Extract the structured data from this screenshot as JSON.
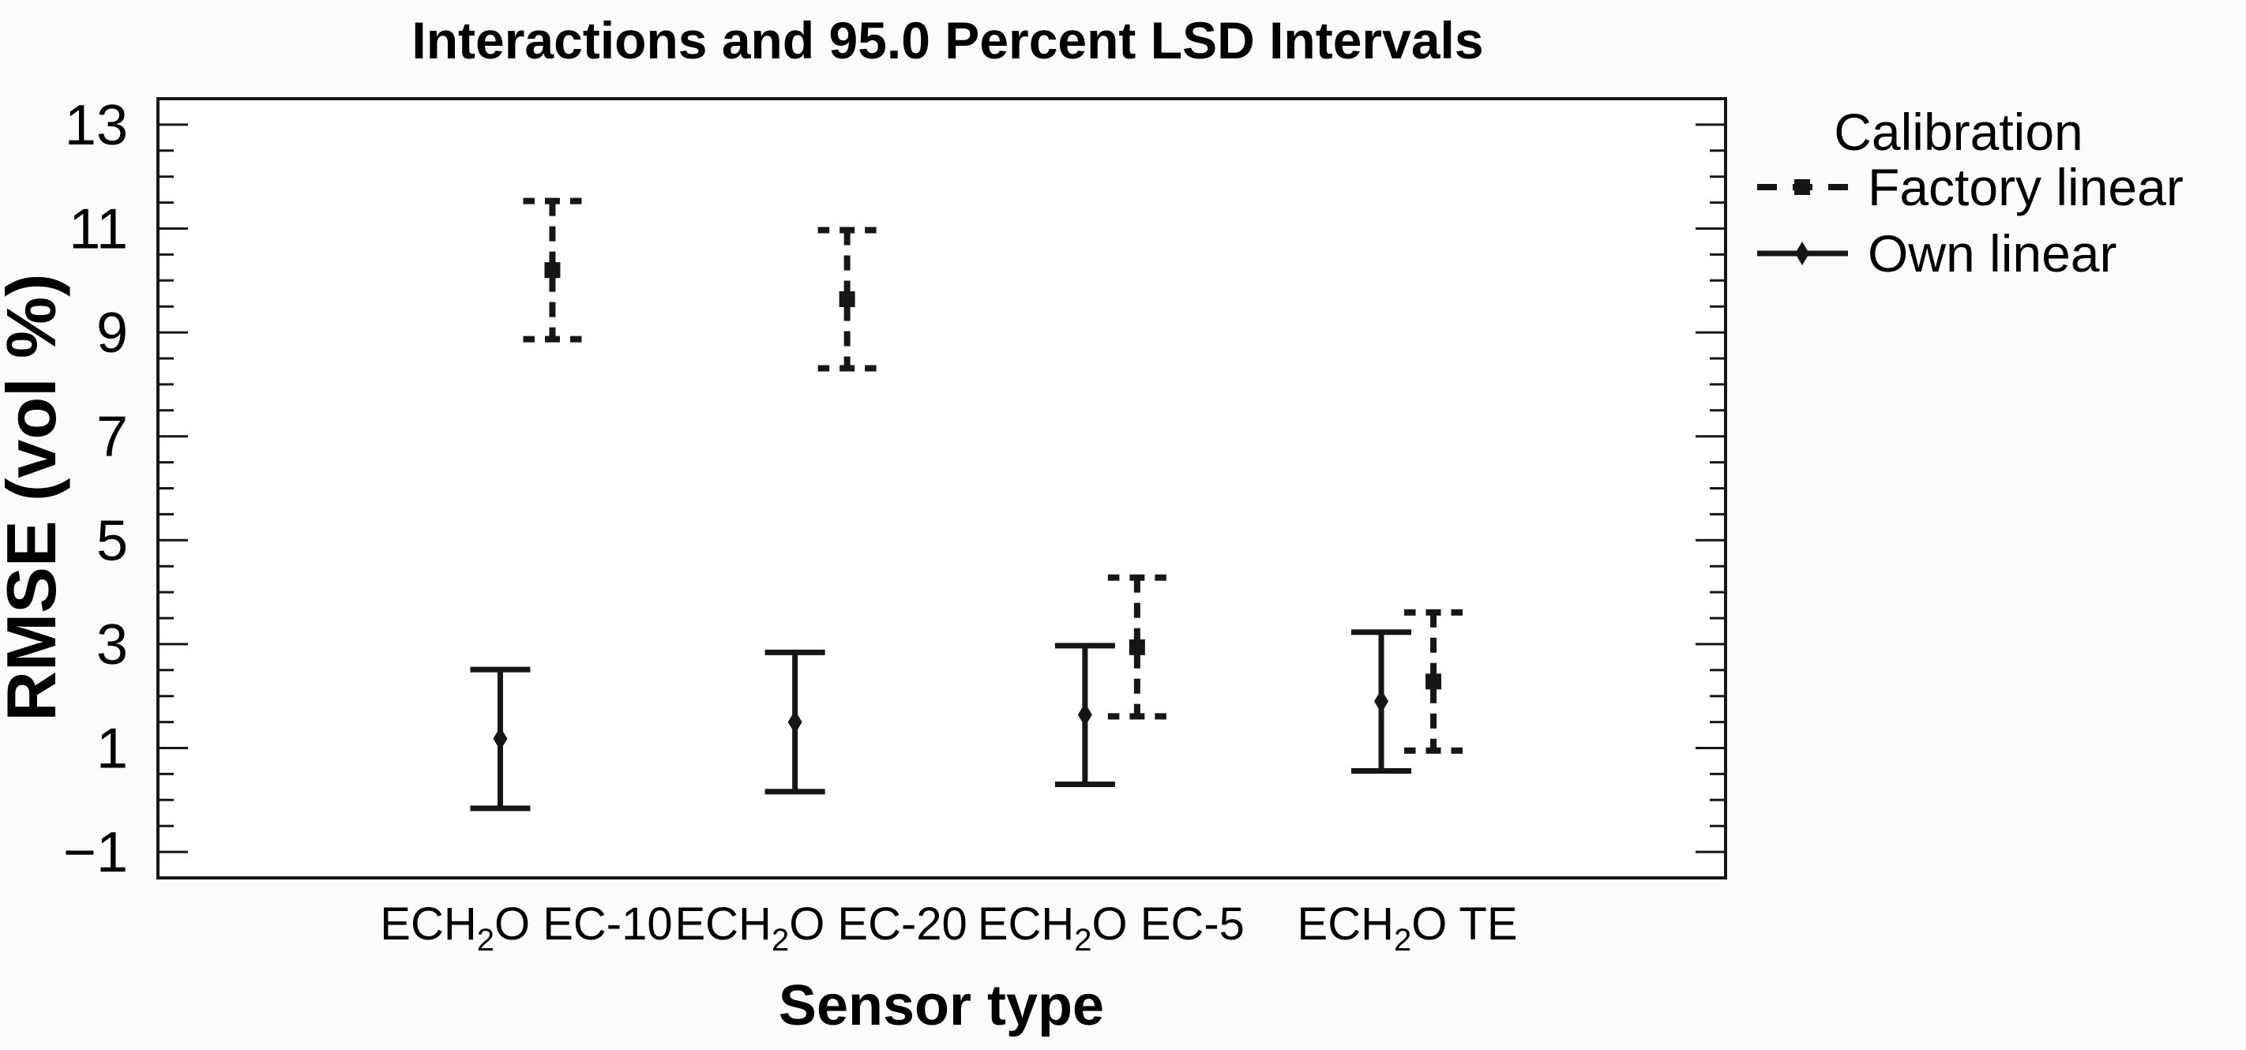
{
  "figure": {
    "background": "#fbfbfb",
    "plot_background": "#ffffff",
    "line_color": "#161616",
    "text_color": "#000000"
  },
  "chart_data": {
    "type": "scatter",
    "title": "Interactions and 95.0 Percent LSD Intervals",
    "xlabel": "Sensor type",
    "ylabel": "RMSE (vol %)",
    "interval_type": "95.0 Percent LSD",
    "categories": [
      {
        "pre": "ECH",
        "sub": "2",
        "post": "O EC-10"
      },
      {
        "pre": "ECH",
        "sub": "2",
        "post": "O EC-20"
      },
      {
        "pre": "ECH",
        "sub": "2",
        "post": "O EC-5"
      },
      {
        "pre": "ECH",
        "sub": "2",
        "post": "O TE"
      }
    ],
    "series": [
      {
        "name": "Own linear",
        "line_style": "solid",
        "marker": "diamond",
        "means": [
          1.18,
          1.5,
          1.64,
          1.9
        ],
        "lower": [
          -0.16,
          0.16,
          0.3,
          0.56
        ],
        "upper": [
          2.51,
          2.84,
          2.97,
          3.23
        ]
      },
      {
        "name": "Factory linear",
        "line_style": "dashed",
        "marker": "square",
        "means": [
          10.2,
          9.64,
          2.94,
          2.28
        ],
        "lower": [
          8.87,
          8.31,
          1.61,
          0.95
        ],
        "upper": [
          11.53,
          10.97,
          4.28,
          3.61
        ]
      }
    ],
    "ylim": [
      -1.5,
      13.5
    ],
    "yticks": [
      13,
      11,
      9,
      7,
      5,
      3,
      1,
      -1
    ],
    "minor_tick_step": 0.5,
    "grid": false,
    "legend": {
      "title": "Calibration",
      "position": "top-right",
      "entries": [
        "Factory linear",
        "Own linear"
      ]
    }
  }
}
